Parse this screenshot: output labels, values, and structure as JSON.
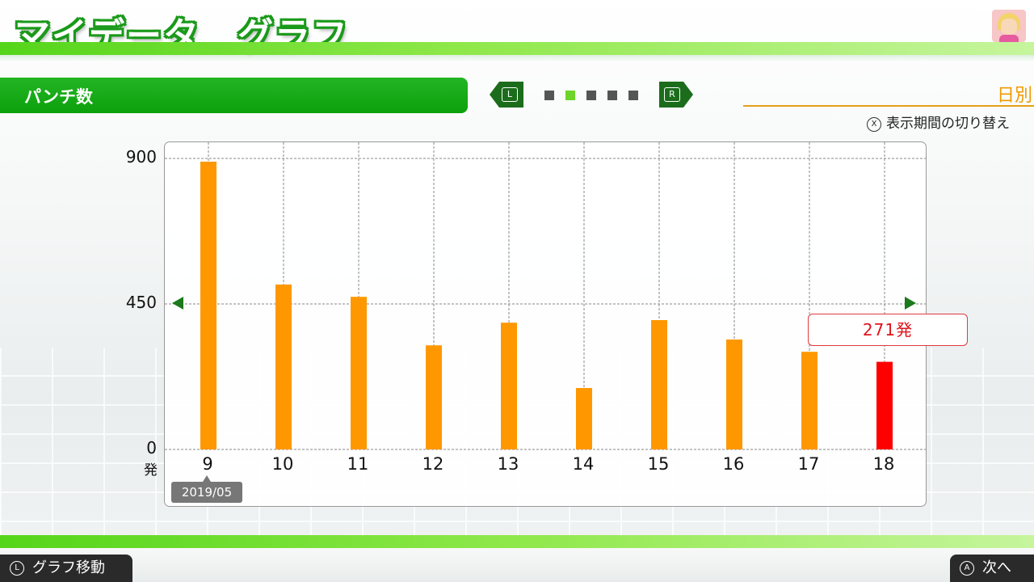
{
  "header": {
    "title": "マイデータ　グラフ",
    "avatar_icon": "mii-avatar-icon"
  },
  "section": {
    "title": "パンチ数",
    "prev_button": "L",
    "next_button": "R",
    "page_count": 5,
    "active_page": 1
  },
  "period": {
    "label": "日別",
    "hint_button": "X",
    "hint_text": "表示期間の切り替え"
  },
  "chart_data": {
    "type": "bar",
    "categories": [
      "9",
      "10",
      "11",
      "12",
      "13",
      "14",
      "15",
      "16",
      "17",
      "18"
    ],
    "values": [
      890,
      510,
      472,
      322,
      392,
      190,
      400,
      340,
      302,
      271
    ],
    "ylim": [
      0,
      900
    ],
    "yticks": [
      "0",
      "450",
      "900"
    ],
    "yunit": "発",
    "highlight_index": 9,
    "colors": {
      "bar": "#ff9800",
      "highlight": "#ff0000",
      "grid": "#888888"
    },
    "grid": true
  },
  "date_tag": "2019/05",
  "callout": "271発",
  "footer": {
    "left_button": "L",
    "left_label": "グラフ移動",
    "right_button": "A",
    "right_label": "次へ"
  }
}
